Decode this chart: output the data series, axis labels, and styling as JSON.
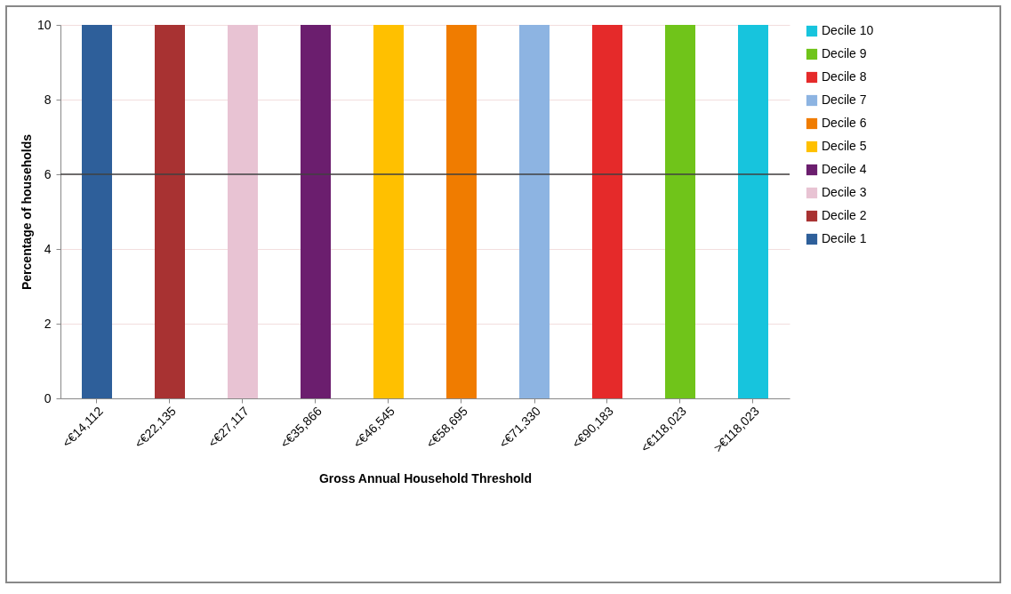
{
  "chart_data": {
    "type": "bar",
    "stacked": true,
    "xlabel": "Gross Annual Household Threshold",
    "ylabel": "Percentage of households",
    "categories": [
      "<€14,112",
      "<€22,135",
      "<€27,117",
      "<€35,866",
      "<€46,545",
      "<€58,695",
      "<€71,330",
      "<€90,183",
      "<€118,023",
      ">€118,023"
    ],
    "series": [
      {
        "name": "Decile 1",
        "color": "#2e5f9a",
        "values": [
          10,
          null,
          null,
          null,
          null,
          null,
          null,
          null,
          null,
          null
        ]
      },
      {
        "name": "Decile 2",
        "color": "#a83232",
        "values": [
          null,
          10,
          null,
          null,
          null,
          null,
          null,
          null,
          null,
          null
        ]
      },
      {
        "name": "Decile 3",
        "color": "#e8c3d3",
        "values": [
          null,
          null,
          10,
          null,
          null,
          null,
          null,
          null,
          null,
          null
        ]
      },
      {
        "name": "Decile 4",
        "color": "#6b1e6e",
        "values": [
          null,
          null,
          null,
          10,
          null,
          null,
          null,
          null,
          null,
          null
        ]
      },
      {
        "name": "Decile 5",
        "color": "#ffc000",
        "values": [
          null,
          null,
          null,
          null,
          10,
          null,
          null,
          null,
          null,
          null
        ]
      },
      {
        "name": "Decile 6",
        "color": "#f07c00",
        "values": [
          null,
          null,
          null,
          null,
          null,
          10,
          null,
          null,
          null,
          null
        ]
      },
      {
        "name": "Decile 7",
        "color": "#8db4e2",
        "values": [
          null,
          null,
          null,
          null,
          null,
          null,
          10,
          null,
          null,
          null
        ]
      },
      {
        "name": "Decile 8",
        "color": "#e52a2a",
        "values": [
          null,
          null,
          null,
          null,
          null,
          null,
          null,
          10,
          null,
          null
        ]
      },
      {
        "name": "Decile 9",
        "color": "#70c41a",
        "values": [
          null,
          null,
          null,
          null,
          null,
          null,
          null,
          null,
          10,
          null
        ]
      },
      {
        "name": "Decile 10",
        "color": "#17c4dd",
        "values": [
          null,
          null,
          null,
          null,
          null,
          null,
          null,
          null,
          null,
          10
        ]
      }
    ],
    "ylim": [
      0,
      10
    ],
    "yticks": [
      0,
      2,
      4,
      6,
      8,
      10
    ],
    "grid": "y",
    "legend": "right",
    "ref_lines": [
      {
        "axis": "y",
        "value": 6,
        "color": "#404040"
      }
    ]
  }
}
